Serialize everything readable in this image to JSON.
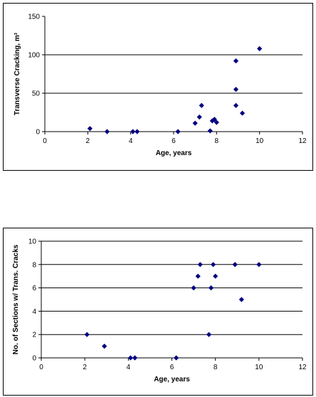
{
  "chart_data": [
    {
      "type": "scatter",
      "xlabel": "Age,  years",
      "ylabel": "Transverse Cracking, m²",
      "xlim": [
        0,
        12
      ],
      "ylim": [
        0,
        150
      ],
      "xticks": [
        0,
        2,
        4,
        6,
        8,
        10,
        12
      ],
      "yticks": [
        0,
        50,
        100,
        150
      ],
      "gridlines": [
        50,
        100
      ],
      "grid": "horizontal",
      "marker_color": "#000080",
      "x": [
        2.1,
        2.9,
        4.1,
        4.3,
        6.2,
        7.0,
        7.2,
        7.3,
        7.7,
        7.8,
        7.9,
        8.0,
        8.9,
        8.9,
        8.9,
        9.2,
        10.0
      ],
      "y": [
        4,
        0,
        0,
        0,
        0,
        11,
        19,
        34,
        1,
        14,
        16,
        12,
        92,
        55,
        34,
        24,
        108
      ]
    },
    {
      "type": "scatter",
      "xlabel": "Age,  years",
      "ylabel": "No. of Sections w/ Trans. Cracks",
      "xlim": [
        0,
        12
      ],
      "ylim": [
        0,
        10
      ],
      "xticks": [
        0,
        2,
        4,
        6,
        8,
        10,
        12
      ],
      "yticks": [
        0,
        2,
        4,
        6,
        8,
        10
      ],
      "gridlines": [
        2,
        4,
        6,
        8,
        10
      ],
      "grid": "horizontal",
      "marker_color": "#000080",
      "x": [
        2.1,
        2.9,
        4.1,
        4.3,
        6.2,
        7.0,
        7.2,
        7.3,
        7.7,
        7.8,
        7.9,
        8.0,
        8.9,
        8.9,
        9.2,
        10.0
      ],
      "y": [
        2,
        1,
        0,
        0,
        0,
        6,
        7,
        8,
        2,
        6,
        8,
        7,
        8,
        8,
        5,
        8
      ]
    }
  ]
}
